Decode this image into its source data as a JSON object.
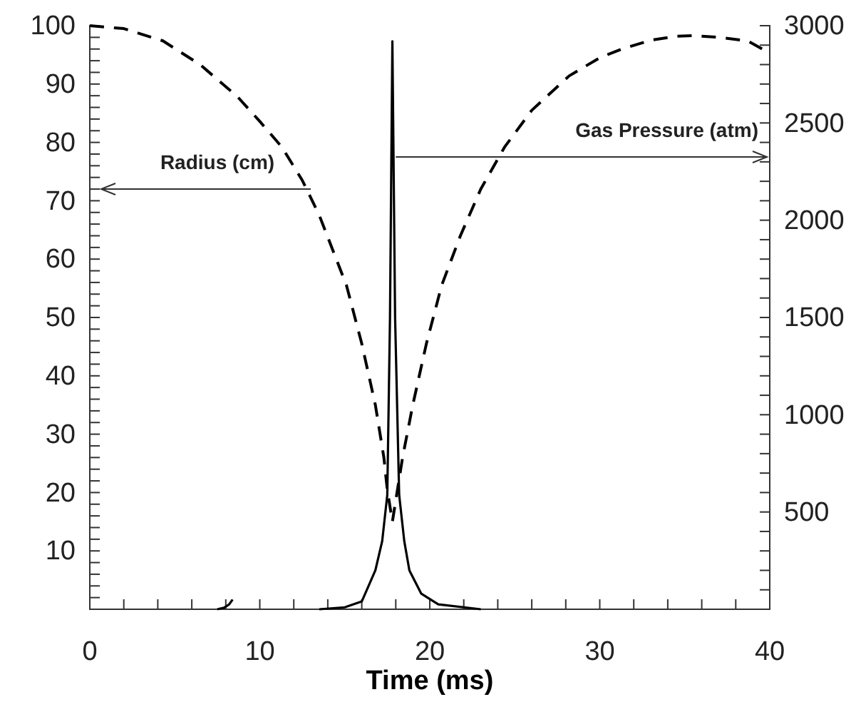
{
  "chart_data": {
    "type": "line",
    "xlabel": "Time (ms)",
    "xlim": [
      0,
      40
    ],
    "xticks": [
      0,
      {
        "value": 2,
        "label": null
      },
      {
        "value": 4,
        "label": null
      },
      {
        "value": 6,
        "label": null
      },
      {
        "value": 8,
        "label": null
      },
      10,
      {
        "value": 12,
        "label": null
      },
      {
        "value": 14,
        "label": null
      },
      {
        "value": 16,
        "label": null
      },
      {
        "value": 18,
        "label": null
      },
      20,
      {
        "value": 22,
        "label": null
      },
      {
        "value": 24,
        "label": null
      },
      {
        "value": 26,
        "label": null
      },
      {
        "value": 28,
        "label": null
      },
      30,
      {
        "value": 32,
        "label": null
      },
      {
        "value": 34,
        "label": null
      },
      {
        "value": 36,
        "label": null
      },
      {
        "value": 38,
        "label": null
      },
      40
    ],
    "ylim": [
      0,
      100
    ],
    "yticks": [
      {
        "value": 2,
        "label": null
      },
      {
        "value": 4,
        "label": null
      },
      {
        "value": 6,
        "label": null
      },
      {
        "value": 8,
        "label": null
      },
      10,
      {
        "value": 12,
        "label": null
      },
      {
        "value": 14,
        "label": null
      },
      {
        "value": 16,
        "label": null
      },
      {
        "value": 18,
        "label": null
      },
      20,
      {
        "value": 22,
        "label": null
      },
      {
        "value": 24,
        "label": null
      },
      {
        "value": 26,
        "label": null
      },
      {
        "value": 28,
        "label": null
      },
      30,
      {
        "value": 32,
        "label": null
      },
      {
        "value": 34,
        "label": null
      },
      {
        "value": 36,
        "label": null
      },
      {
        "value": 38,
        "label": null
      },
      40,
      {
        "value": 42,
        "label": null
      },
      {
        "value": 44,
        "label": null
      },
      {
        "value": 46,
        "label": null
      },
      {
        "value": 48,
        "label": null
      },
      50,
      {
        "value": 52,
        "label": null
      },
      {
        "value": 54,
        "label": null
      },
      {
        "value": 56,
        "label": null
      },
      {
        "value": 58,
        "label": null
      },
      60,
      {
        "value": 62,
        "label": null
      },
      {
        "value": 64,
        "label": null
      },
      {
        "value": 66,
        "label": null
      },
      {
        "value": 68,
        "label": null
      },
      70,
      {
        "value": 72,
        "label": null
      },
      {
        "value": 74,
        "label": null
      },
      {
        "value": 76,
        "label": null
      },
      {
        "value": 78,
        "label": null
      },
      80,
      {
        "value": 82,
        "label": null
      },
      {
        "value": 84,
        "label": null
      },
      {
        "value": 86,
        "label": null
      },
      {
        "value": 88,
        "label": null
      },
      90,
      {
        "value": 92,
        "label": null
      },
      {
        "value": 94,
        "label": null
      },
      {
        "value": 96,
        "label": null
      },
      {
        "value": 98,
        "label": null
      },
      100
    ],
    "y2lim": [
      0,
      3000
    ],
    "y2ticks": [
      {
        "value": 100,
        "label": null
      },
      {
        "value": 200,
        "label": null
      },
      {
        "value": 300,
        "label": null
      },
      {
        "value": 400,
        "label": null
      },
      500,
      {
        "value": 600,
        "label": null
      },
      {
        "value": 700,
        "label": null
      },
      {
        "value": 800,
        "label": null
      },
      {
        "value": 900,
        "label": null
      },
      1000,
      {
        "value": 1100,
        "label": null
      },
      {
        "value": 1200,
        "label": null
      },
      {
        "value": 1300,
        "label": null
      },
      {
        "value": 1400,
        "label": null
      },
      1500,
      {
        "value": 1600,
        "label": null
      },
      {
        "value": 1700,
        "label": null
      },
      {
        "value": 1800,
        "label": null
      },
      {
        "value": 1900,
        "label": null
      },
      2000,
      {
        "value": 2100,
        "label": null
      },
      {
        "value": 2200,
        "label": null
      },
      {
        "value": 2300,
        "label": null
      },
      {
        "value": 2400,
        "label": null
      },
      2500,
      {
        "value": 2600,
        "label": null
      },
      {
        "value": 2700,
        "label": null
      },
      {
        "value": 2800,
        "label": null
      },
      {
        "value": 2900,
        "label": null
      },
      3000
    ],
    "grid": false,
    "annotations": [
      {
        "text": "Radius (cm)",
        "x": 13,
        "y": 72
      },
      {
        "text": "Gas Pressure (atm)",
        "x": 18,
        "y": 77.5
      }
    ],
    "series": [
      {
        "color": "#000000",
        "line_style": "dashed",
        "x": [
          0,
          2,
          4.3,
          6.5,
          8.7,
          10,
          11.3,
          12.5,
          13.5,
          14.3,
          15.1,
          16,
          16.8,
          17.3,
          17.5,
          17.8,
          18.1,
          18.4,
          19,
          19.8,
          20.7,
          21.8,
          23,
          24.4,
          26,
          28.2,
          30,
          31.3,
          33,
          34.5,
          35.5,
          37,
          38.7,
          40
        ],
        "values": [
          100,
          99.5,
          97.4,
          93.3,
          87.8,
          83.6,
          79.2,
          73.5,
          67.5,
          61.5,
          55.5,
          45.5,
          35,
          26,
          20.5,
          15,
          20.5,
          26,
          35,
          45.5,
          55.5,
          64,
          72,
          79.2,
          85.5,
          91.4,
          94.5,
          96,
          97.5,
          98.2,
          98.3,
          98,
          97.4,
          95.3
        ]
      },
      {
        "color": "#000000",
        "line_style": "solid",
        "axis": "y2",
        "x": [
          7.5,
          7.9,
          8.2,
          8.4,
          null,
          13.5,
          15,
          16,
          16.8,
          17.2,
          17.5,
          17.66,
          17.8,
          17.96,
          18.2,
          18.5,
          18.8,
          19.5,
          20.5,
          23
        ],
        "values": [
          0,
          8,
          25,
          50,
          null,
          0,
          10,
          40,
          200,
          350,
          587,
          1500,
          2920,
          1500,
          587,
          350,
          200,
          80,
          25,
          0
        ]
      }
    ]
  }
}
